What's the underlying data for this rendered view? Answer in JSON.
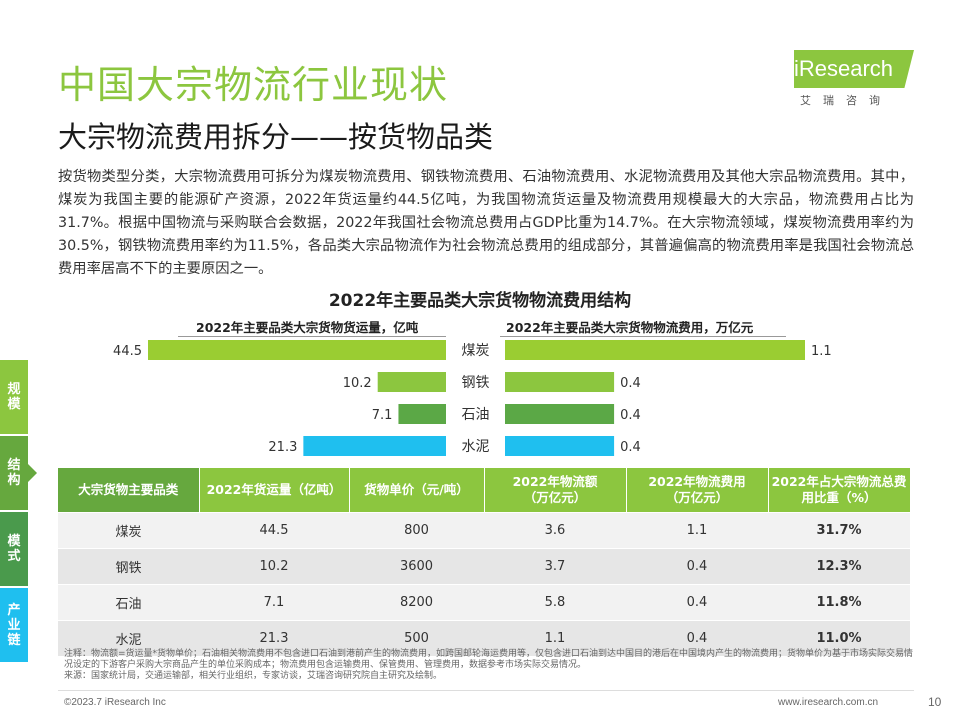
{
  "header": {
    "title": "中国大宗物流行业现状",
    "subtitle": "大宗物流费用拆分——按货物品类"
  },
  "logo": {
    "brand": "iResearch",
    "sub": "艾瑞咨询"
  },
  "intro": "按货物类型分类，大宗物流费用可拆分为煤炭物流费用、钢铁物流费用、石油物流费用、水泥物流费用及其他大宗品物流费用。其中，煤炭为我国主要的能源矿产资源，2022年货运量约44.5亿吨，为我国物流货运量及物流费用规模最大的大宗品，物流费用占比为31.7%。根据中国物流与采购联合会数据，2022年我国社会物流总费用占GDP比重为14.7%。在大宗物流领域，煤炭物流费用率约为30.5%，钢铁物流费用率约为11.5%，各品类大宗品物流作为社会物流总费用的组成部分，其普遍偏高的物流费用率是我国社会物流总费用率居高不下的主要原因之一。",
  "sidebar": {
    "tabs": [
      {
        "label": "规模",
        "color": "#8cc63f"
      },
      {
        "label": "结构",
        "color": "#66a83e"
      },
      {
        "label": "模式",
        "color": "#4a9a4c"
      },
      {
        "label": "产业链",
        "color": "#1fbfef"
      }
    ]
  },
  "chart_data": {
    "type": "bar",
    "title": "2022年主要品类大宗货物物流费用结构",
    "categories": [
      "煤炭",
      "钢铁",
      "石油",
      "水泥"
    ],
    "colors": [
      "#9acd32",
      "#8cc63f",
      "#5ba846",
      "#1fbfef"
    ],
    "series": [
      {
        "name": "2022年主要品类大宗货物货运量，亿吨",
        "values": [
          44.5,
          10.2,
          7.1,
          21.3
        ],
        "labels": [
          "44.5",
          "10.2",
          "7.1",
          "21.3"
        ]
      },
      {
        "name": "2022年主要品类大宗货物物流费用，万亿元",
        "values": [
          1.1,
          0.4,
          0.4,
          0.4
        ],
        "labels": [
          "1.1",
          "0.4",
          "0.4",
          "0.4"
        ]
      }
    ]
  },
  "table": {
    "headers": [
      "大宗货物主要品类",
      "2022年货运量（亿吨）",
      "货物单价（元/吨）",
      "2022年物流额\n（万亿元）",
      "2022年物流费用\n（万亿元）",
      "2022年占大宗物流总费用比重（%）"
    ],
    "rows": [
      [
        "煤炭",
        "44.5",
        "800",
        "3.6",
        "1.1",
        "31.7%"
      ],
      [
        "钢铁",
        "10.2",
        "3600",
        "3.7",
        "0.4",
        "12.3%"
      ],
      [
        "石油",
        "7.1",
        "8200",
        "5.8",
        "0.4",
        "11.8%"
      ],
      [
        "水泥",
        "21.3",
        "500",
        "1.1",
        "0.4",
        "11.0%"
      ]
    ]
  },
  "note": "注释：物流额=货运量*货物单价；石油相关物流费用不包含进口石油到港前产生的物流费用，如跨国邮轮海运费用等，仅包含进口石油到达中国目的港后在中国境内产生的物流费用；货物单价为基于市场实际交易情况设定的下游客户采购大宗商品产生的单位采购成本；物流费用包含运输费用、保管费用、管理费用，数据参考市场实际交易情况。\n来源：国家统计局，交通运输部，相关行业组织，专家访谈，艾瑞咨询研究院自主研究及绘制。",
  "footer": {
    "copyright": "©2023.7 iResearch Inc",
    "website": "www.iresearch.com.cn",
    "page": "10"
  }
}
